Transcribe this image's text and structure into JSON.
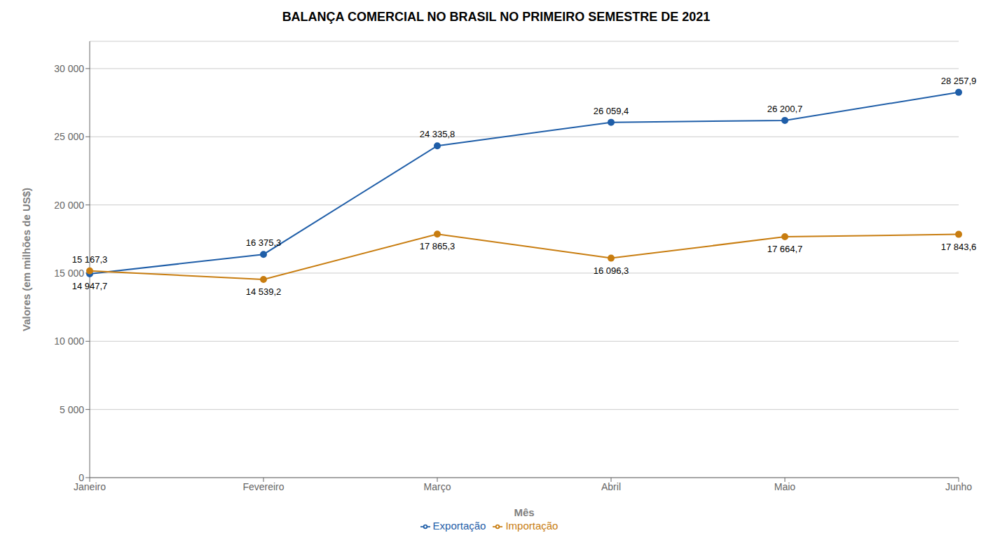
{
  "chart_data": {
    "type": "line",
    "title": "BALANÇA COMERCIAL NO BRASIL NO PRIMEIRO SEMESTRE DE 2021",
    "x_label": "Mês",
    "y_label": "Valores (em milhões de US$)",
    "categories": [
      "Janeiro",
      "Fevereiro",
      "Março",
      "Abril",
      "Maio",
      "Junho"
    ],
    "series": [
      {
        "name": "Exportação",
        "color": "#1f5ea8",
        "marker": "circle",
        "line_style": "solid",
        "values": [
          14947.7,
          16375.3,
          24335.8,
          26059.4,
          26200.7,
          28257.9
        ],
        "value_labels": [
          "14 947,7",
          "16 375,3",
          "24 335,8",
          "26 059,4",
          "26 200,7",
          "28 257,9"
        ]
      },
      {
        "name": "Importação",
        "color": "#c87d10",
        "marker": "circle",
        "line_style": "solid",
        "values": [
          15167.3,
          14539.2,
          17865.3,
          16096.3,
          17664.7,
          17843.6
        ],
        "value_labels": [
          "15 167,3",
          "14 539,2",
          "17 865,3",
          "16 096,3",
          "17 664,7",
          "17 843,6"
        ]
      }
    ],
    "ylim": [
      0,
      32000
    ],
    "yticks": [
      0,
      {
        "value": 5000,
        "label": "5 000"
      },
      {
        "value": 10000,
        "label": "10 000"
      },
      {
        "value": 15000,
        "label": "15 000"
      },
      {
        "value": 20000,
        "label": "20 000"
      },
      {
        "value": 25000,
        "label": "25 000"
      },
      {
        "value": 30000,
        "label": "30 000"
      }
    ],
    "grid": true,
    "legend": "bottom",
    "data_labels": true
  }
}
